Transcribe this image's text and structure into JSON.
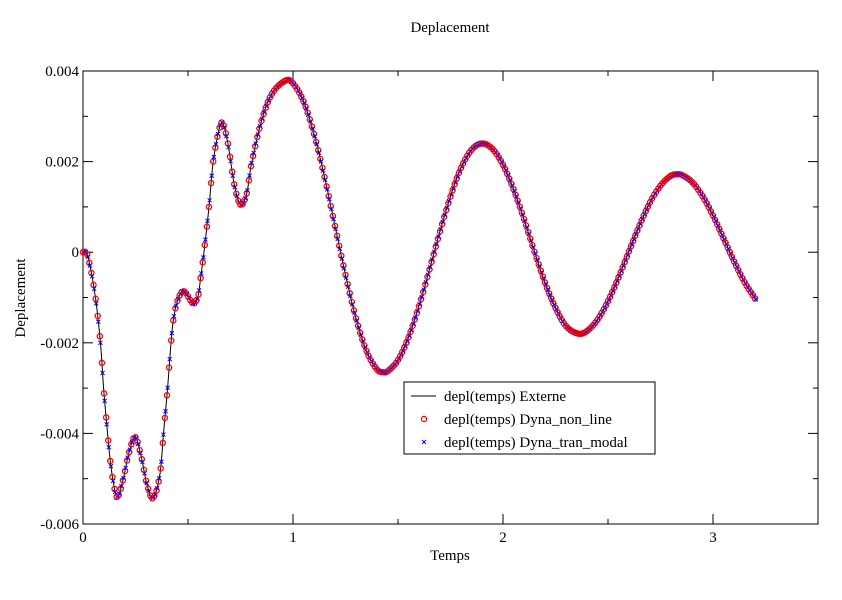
{
  "chart_data": {
    "type": "line",
    "title": "Deplacement",
    "xlabel": "Temps",
    "ylabel": "Deplacement",
    "xlim": [
      0,
      3.5
    ],
    "ylim": [
      -0.006,
      0.004
    ],
    "xticks": [
      0,
      1,
      2,
      3
    ],
    "xtick_labels": [
      "0",
      "1",
      "2",
      "3"
    ],
    "yticks": [
      0.004,
      0.002,
      0,
      -0.002,
      -0.004,
      -0.006
    ],
    "ytick_labels": [
      "0.004",
      "0.002",
      "0",
      "-0.002",
      "-0.004",
      "-0.006"
    ],
    "grid": false,
    "legend_position": "center-right",
    "x": [
      0,
      0.02,
      0.057,
      0.084,
      0.097,
      0.113,
      0.129,
      0.145,
      0.163,
      0.192,
      0.216,
      0.248,
      0.279,
      0.303,
      0.332,
      0.367,
      0.386,
      0.402,
      0.414,
      0.427,
      0.446,
      0.478,
      0.525,
      0.549,
      0.56,
      0.576,
      0.6,
      0.62,
      0.65,
      0.665,
      0.69,
      0.72,
      0.75,
      0.78,
      0.8,
      0.85,
      0.9,
      0.97,
      1.0,
      1.05,
      1.1,
      1.15,
      1.2,
      1.25,
      1.3,
      1.35,
      1.4,
      1.43,
      1.45,
      1.5,
      1.55,
      1.6,
      1.65,
      1.7,
      1.75,
      1.8,
      1.85,
      1.9,
      1.95,
      2.0,
      2.05,
      2.1,
      2.15,
      2.2,
      2.25,
      2.3,
      2.36,
      2.4,
      2.45,
      2.5,
      2.55,
      2.6,
      2.65,
      2.7,
      2.75,
      2.8,
      2.83,
      2.85,
      2.9,
      2.95,
      3.0,
      3.05,
      3.1,
      3.15,
      3.2
    ],
    "series": [
      {
        "name": "depl(temps) Externe",
        "style": "line",
        "color": "#000000",
        "values": [
          0,
          -5e-05,
          -0.00093,
          -0.00205,
          -0.00294,
          -0.0038,
          -0.00457,
          -0.0051,
          -0.00541,
          -0.005,
          -0.00448,
          -0.00408,
          -0.00455,
          -0.0051,
          -0.00543,
          -0.00488,
          -0.00386,
          -0.00305,
          -0.0023,
          -0.00161,
          -0.00113,
          -0.00086,
          -0.00113,
          -0.00095,
          -0.00057,
          0,
          0.001,
          0.002,
          0.00275,
          0.00285,
          0.0024,
          0.0015,
          0.00105,
          0.0013,
          0.0019,
          0.0029,
          0.0035,
          0.0038,
          0.00373,
          0.00333,
          0.00261,
          0.00166,
          0.00058,
          -0.0005,
          -0.00146,
          -0.00218,
          -0.00259,
          -0.00265,
          -0.00263,
          -0.00238,
          -0.00188,
          -0.00119,
          -0.00038,
          0.00046,
          0.00123,
          0.00186,
          0.00226,
          0.0024,
          0.00228,
          0.00193,
          0.00139,
          0.00073,
          1e-05,
          -0.00067,
          -0.00123,
          -0.00163,
          -0.0018,
          -0.00174,
          -0.00149,
          -0.00108,
          -0.00056,
          2e-05,
          0.00059,
          0.0011,
          0.00147,
          0.00169,
          0.00172,
          0.00171,
          0.00155,
          0.00124,
          0.00081,
          0.00031,
          -0.0002,
          -0.00066,
          -0.00102
        ]
      },
      {
        "name": "depl(temps) Dyna_non_line",
        "style": "circle",
        "color": "#ff0000"
      },
      {
        "name": "depl(temps) Dyna_tran_modal",
        "style": "x",
        "color": "#0000ff"
      }
    ],
    "marker_step": 0.01
  }
}
